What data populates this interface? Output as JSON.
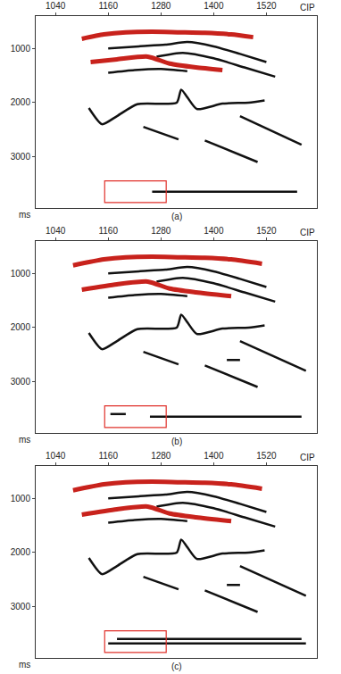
{
  "chart_data": [
    {
      "type": "line",
      "title": "(a)",
      "x_label": "CIP",
      "y_label": "ms",
      "xlim": [
        995,
        1635
      ],
      "xticks": [
        1040,
        1160,
        1280,
        1400,
        1520
      ],
      "ylim": [
        3950,
        400
      ],
      "yticks": [
        1000,
        2000,
        3000
      ],
      "box": {
        "x": [
          1152,
          1292
        ],
        "y": [
          3450,
          3850
        ],
        "color": "#e0302a"
      },
      "series": [
        {
          "color": "#c8221c",
          "x": [
            1100,
            1150,
            1200,
            1260,
            1320,
            1380,
            1440,
            1490
          ],
          "values": [
            820,
            740,
            700,
            690,
            700,
            710,
            740,
            790
          ]
        },
        {
          "color": "#111111",
          "x": [
            1160,
            1230,
            1290,
            1340,
            1400,
            1460,
            1520
          ],
          "values": [
            1000,
            960,
            930,
            880,
            960,
            1100,
            1250
          ]
        },
        {
          "color": "#111111",
          "x": [
            1270,
            1330,
            1400,
            1470,
            1540
          ],
          "values": [
            1150,
            1080,
            1180,
            1350,
            1520
          ]
        },
        {
          "color": "#c8221c",
          "x": [
            1120,
            1180,
            1250,
            1300,
            1360,
            1420
          ],
          "values": [
            1250,
            1200,
            1150,
            1280,
            1350,
            1400
          ]
        },
        {
          "color": "#111111",
          "x": [
            1160,
            1220,
            1280,
            1340
          ],
          "values": [
            1450,
            1400,
            1380,
            1420
          ]
        },
        {
          "color": "#111111",
          "x": [
            1116,
            1146,
            1180,
            1226,
            1316,
            1326,
            1340,
            1362,
            1420,
            1480,
            1516
          ],
          "values": [
            2100,
            2400,
            2250,
            2030,
            2000,
            1760,
            1900,
            2120,
            2020,
            2000,
            1960
          ]
        },
        {
          "color": "#111111",
          "x": [
            1240,
            1320
          ],
          "values": [
            2450,
            2680
          ]
        },
        {
          "color": "#111111",
          "x": [
            1380,
            1500
          ],
          "values": [
            2700,
            3100
          ]
        },
        {
          "color": "#111111",
          "x": [
            1460,
            1600
          ],
          "values": [
            2250,
            2780
          ]
        },
        {
          "color": "#111111",
          "x": [
            1260,
            1590
          ],
          "values": [
            3650,
            3650
          ]
        }
      ]
    },
    {
      "type": "line",
      "title": "(b)",
      "x_label": "CIP",
      "y_label": "ms",
      "xlim": [
        995,
        1635
      ],
      "xticks": [
        1040,
        1160,
        1280,
        1400,
        1520
      ],
      "ylim": [
        3950,
        400
      ],
      "yticks": [
        1000,
        2000,
        3000
      ],
      "box": {
        "x": [
          1152,
          1292
        ],
        "y": [
          3450,
          3850
        ],
        "color": "#e0302a"
      },
      "series": [
        {
          "color": "#c8221c",
          "x": [
            1080,
            1150,
            1200,
            1260,
            1320,
            1380,
            1440,
            1510
          ],
          "values": [
            850,
            740,
            700,
            690,
            700,
            710,
            740,
            820
          ]
        },
        {
          "color": "#111111",
          "x": [
            1160,
            1230,
            1290,
            1340,
            1400,
            1460,
            1520
          ],
          "values": [
            1000,
            960,
            930,
            880,
            960,
            1100,
            1250
          ]
        },
        {
          "color": "#111111",
          "x": [
            1270,
            1330,
            1400,
            1470,
            1540
          ],
          "values": [
            1150,
            1080,
            1180,
            1350,
            1520
          ]
        },
        {
          "color": "#c8221c",
          "x": [
            1100,
            1180,
            1250,
            1300,
            1360,
            1440
          ],
          "values": [
            1300,
            1200,
            1150,
            1280,
            1350,
            1420
          ]
        },
        {
          "color": "#111111",
          "x": [
            1160,
            1220,
            1280,
            1340
          ],
          "values": [
            1450,
            1400,
            1380,
            1420
          ]
        },
        {
          "color": "#111111",
          "x": [
            1116,
            1146,
            1180,
            1226,
            1316,
            1326,
            1340,
            1362,
            1420,
            1480,
            1516
          ],
          "values": [
            2100,
            2400,
            2250,
            2030,
            2000,
            1760,
            1900,
            2120,
            2020,
            2000,
            1960
          ]
        },
        {
          "color": "#111111",
          "x": [
            1240,
            1320
          ],
          "values": [
            2450,
            2680
          ]
        },
        {
          "color": "#111111",
          "x": [
            1380,
            1500
          ],
          "values": [
            2700,
            3100
          ]
        },
        {
          "color": "#111111",
          "x": [
            1460,
            1610
          ],
          "values": [
            2250,
            2800
          ]
        },
        {
          "color": "#111111",
          "x": [
            1430,
            1460
          ],
          "values": [
            2600,
            2600
          ]
        },
        {
          "color": "#111111",
          "x": [
            1165,
            1200
          ],
          "values": [
            3600,
            3600
          ]
        },
        {
          "color": "#111111",
          "x": [
            1255,
            1600
          ],
          "values": [
            3650,
            3650
          ]
        }
      ]
    },
    {
      "type": "line",
      "title": "(c)",
      "x_label": "CIP",
      "y_label": "ms",
      "xlim": [
        995,
        1635
      ],
      "xticks": [
        1040,
        1160,
        1280,
        1400,
        1520
      ],
      "ylim": [
        3950,
        400
      ],
      "yticks": [
        1000,
        2000,
        3000
      ],
      "box": {
        "x": [
          1152,
          1292
        ],
        "y": [
          3450,
          3850
        ],
        "color": "#e0302a"
      },
      "series": [
        {
          "color": "#c8221c",
          "x": [
            1080,
            1150,
            1200,
            1260,
            1320,
            1380,
            1440,
            1510
          ],
          "values": [
            850,
            740,
            700,
            690,
            700,
            710,
            740,
            820
          ]
        },
        {
          "color": "#111111",
          "x": [
            1160,
            1230,
            1290,
            1340,
            1400,
            1460,
            1520
          ],
          "values": [
            1000,
            960,
            930,
            880,
            960,
            1100,
            1250
          ]
        },
        {
          "color": "#111111",
          "x": [
            1270,
            1330,
            1400,
            1470,
            1540
          ],
          "values": [
            1150,
            1080,
            1180,
            1350,
            1520
          ]
        },
        {
          "color": "#c8221c",
          "x": [
            1100,
            1180,
            1250,
            1300,
            1360,
            1440
          ],
          "values": [
            1300,
            1200,
            1150,
            1280,
            1350,
            1420
          ]
        },
        {
          "color": "#111111",
          "x": [
            1160,
            1220,
            1280,
            1340
          ],
          "values": [
            1450,
            1400,
            1380,
            1420
          ]
        },
        {
          "color": "#111111",
          "x": [
            1116,
            1146,
            1180,
            1226,
            1316,
            1326,
            1340,
            1362,
            1420,
            1480,
            1516
          ],
          "values": [
            2100,
            2400,
            2250,
            2030,
            2000,
            1760,
            1900,
            2120,
            2020,
            2000,
            1960
          ]
        },
        {
          "color": "#111111",
          "x": [
            1240,
            1320
          ],
          "values": [
            2450,
            2680
          ]
        },
        {
          "color": "#111111",
          "x": [
            1380,
            1500
          ],
          "values": [
            2700,
            3100
          ]
        },
        {
          "color": "#111111",
          "x": [
            1460,
            1610
          ],
          "values": [
            2250,
            2800
          ]
        },
        {
          "color": "#111111",
          "x": [
            1430,
            1460
          ],
          "values": [
            2600,
            2600
          ]
        },
        {
          "color": "#111111",
          "x": [
            1180,
            1600
          ],
          "values": [
            3600,
            3600
          ]
        },
        {
          "color": "#111111",
          "x": [
            1160,
            1610
          ],
          "values": [
            3680,
            3680
          ]
        }
      ]
    }
  ]
}
